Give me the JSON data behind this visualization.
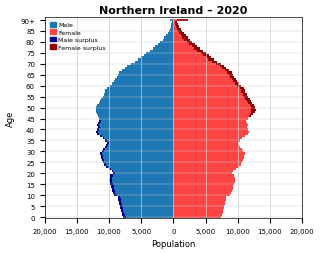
{
  "title": "Northern Ireland – 2020",
  "xlabel": "Population",
  "ylabel": "Age",
  "xlim": [
    -20000,
    20000
  ],
  "xticks": [
    -20000,
    -15000,
    -10000,
    -5000,
    0,
    5000,
    10000,
    15000,
    20000
  ],
  "xticklabels": [
    "20,000",
    "15,000",
    "10,000",
    "5,000",
    "0",
    "5,000",
    "10,000",
    "15,000",
    "20,000"
  ],
  "male": [
    7800,
    7920,
    8040,
    8160,
    8240,
    8320,
    8400,
    8480,
    8560,
    8640,
    9200,
    9400,
    9520,
    9600,
    9680,
    9800,
    9920,
    10000,
    9920,
    9800,
    9400,
    9600,
    10000,
    10400,
    10800,
    11000,
    11120,
    11200,
    11280,
    11360,
    11120,
    10880,
    10600,
    10400,
    10320,
    10600,
    11000,
    11400,
    11800,
    12000,
    11920,
    11680,
    11800,
    11760,
    11600,
    11520,
    11680,
    11840,
    12000,
    12080,
    12000,
    11840,
    11600,
    11360,
    11200,
    11000,
    10800,
    10560,
    10560,
    10320,
    9920,
    9520,
    9280,
    9040,
    8800,
    8640,
    8400,
    8000,
    7600,
    7200,
    6640,
    6000,
    5440,
    5040,
    4640,
    4240,
    3680,
    3240,
    2840,
    2440,
    2040,
    1680,
    1400,
    1120,
    880,
    700,
    540,
    420,
    320,
    240,
    600
  ],
  "female": [
    7400,
    7520,
    7640,
    7760,
    7840,
    7920,
    8000,
    8080,
    8160,
    8240,
    8800,
    9000,
    9120,
    9200,
    9280,
    9400,
    9520,
    9600,
    9520,
    9400,
    9120,
    9320,
    9720,
    10120,
    10520,
    10720,
    10840,
    10920,
    11000,
    11080,
    10840,
    10600,
    10320,
    10120,
    10040,
    10320,
    10720,
    11120,
    11520,
    11720,
    11640,
    11400,
    11520,
    11480,
    11320,
    11600,
    12000,
    12400,
    12720,
    12800,
    12640,
    12480,
    12240,
    12000,
    11840,
    11640,
    11440,
    11200,
    11200,
    10960,
    10560,
    10160,
    9920,
    9680,
    9440,
    9280,
    9040,
    8640,
    8240,
    7840,
    7440,
    6840,
    6280,
    5880,
    5480,
    5080,
    4520,
    4120,
    3720,
    3320,
    2920,
    2560,
    2240,
    1920,
    1640,
    1360,
    1120,
    920,
    740,
    600,
    2200
  ],
  "male_color": "#1f77b4",
  "female_color": "#ff4444",
  "male_surplus_color": "#00008b",
  "female_surplus_color": "#8b0000",
  "background_color": "#ffffff",
  "grid_color": "#cccccc"
}
